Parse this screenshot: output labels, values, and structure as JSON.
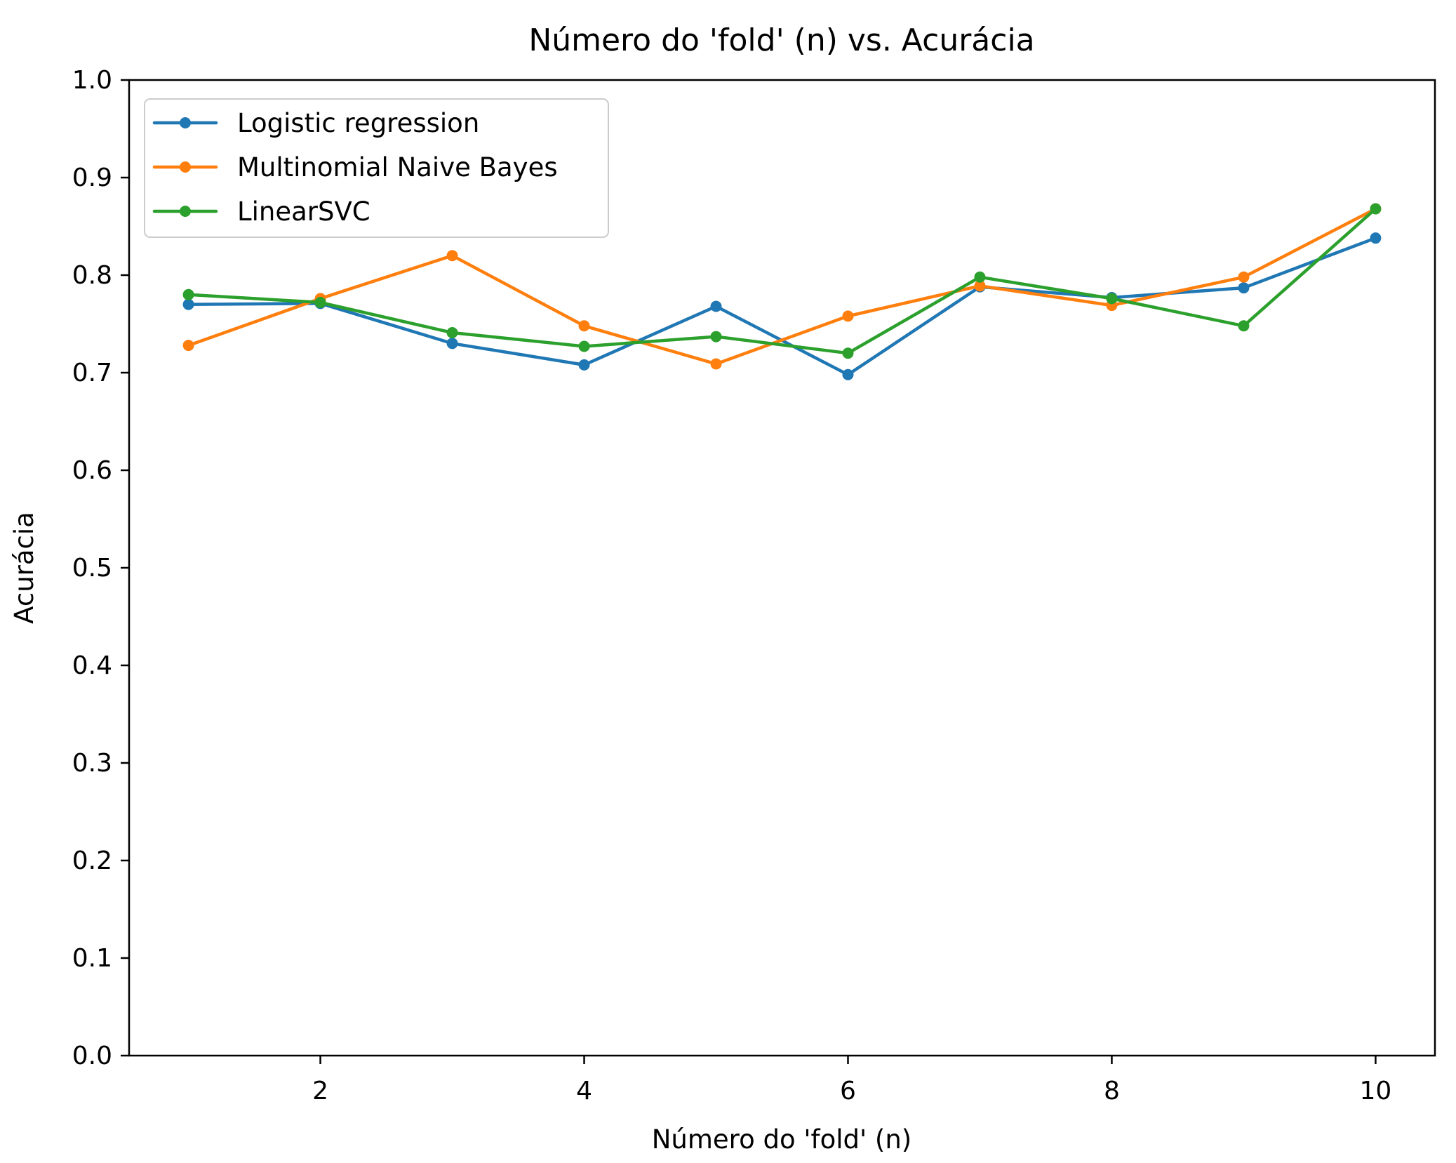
{
  "figure": {
    "background": "#ffffff"
  },
  "chart_data": {
    "type": "line",
    "title": "Número do 'fold' (n) vs. Acurácia",
    "xlabel": "Número do 'fold' (n)",
    "ylabel": "Acurácia",
    "x": [
      1,
      2,
      3,
      4,
      5,
      6,
      7,
      8,
      9,
      10
    ],
    "series": [
      {
        "name": "Logistic regression",
        "color": "#1f77b4",
        "values": [
          0.77,
          0.771,
          0.73,
          0.708,
          0.768,
          0.698,
          0.788,
          0.777,
          0.787,
          0.838
        ]
      },
      {
        "name": "Multinomial Naive Bayes",
        "color": "#ff7f0e",
        "values": [
          0.728,
          0.776,
          0.82,
          0.748,
          0.709,
          0.758,
          0.789,
          0.769,
          0.798,
          0.868
        ]
      },
      {
        "name": "LinearSVC",
        "color": "#2ca02c",
        "values": [
          0.78,
          0.772,
          0.741,
          0.727,
          0.737,
          0.72,
          0.798,
          0.776,
          0.748,
          0.868
        ]
      }
    ],
    "xlim": [
      0.55,
      10.45
    ],
    "ylim": [
      0.0,
      1.0
    ],
    "xticks": [
      2,
      4,
      6,
      8,
      10
    ],
    "yticks": [
      "0.0",
      "0.1",
      "0.2",
      "0.3",
      "0.4",
      "0.5",
      "0.6",
      "0.7",
      "0.8",
      "0.9",
      "1.0"
    ],
    "legend": {
      "position": "upper left"
    },
    "grid": false,
    "marker": "point"
  }
}
